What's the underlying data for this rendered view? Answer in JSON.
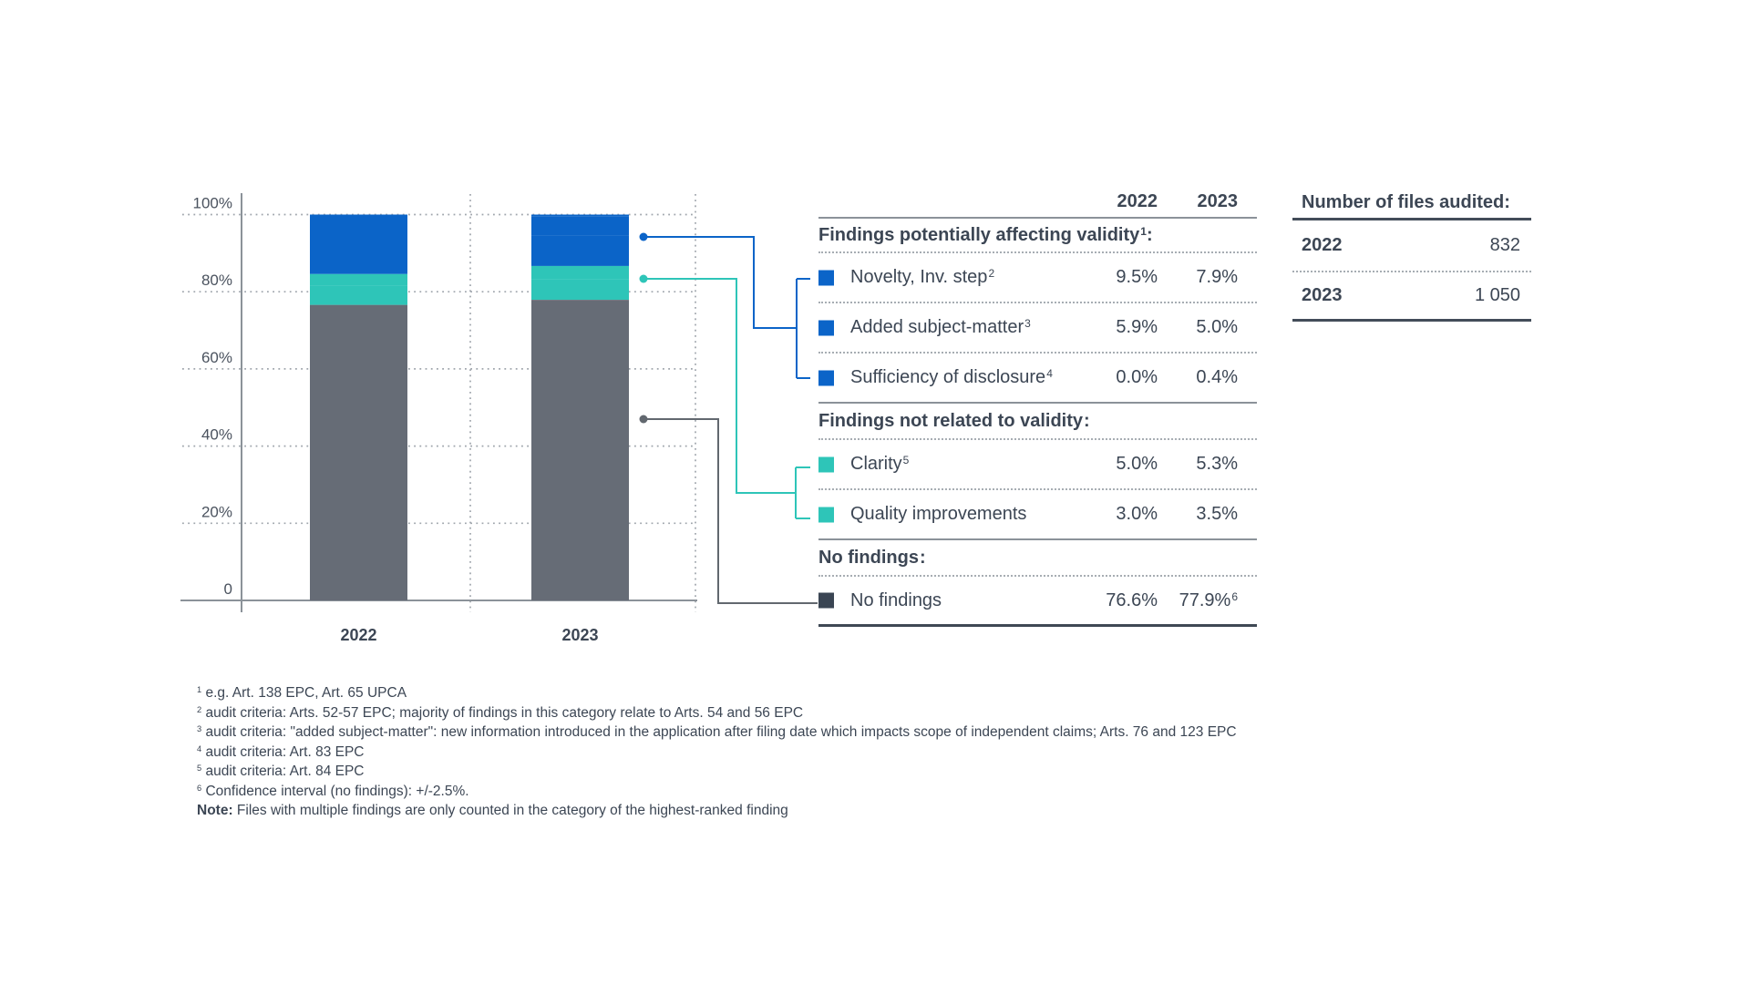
{
  "colors": {
    "blue": "#0B64C8",
    "teal": "#2EC5B8",
    "gray": "#666C76",
    "navy": "#3A4553",
    "text": "#3C4654",
    "axis_label": "#4A525E",
    "grid_dot": "#9FA5AC",
    "axis_line": "#8B9299",
    "connector_gray": "#62686F",
    "line_gray": "#8B9299",
    "line_dark": "#3F4854"
  },
  "chart_data": {
    "type": "bar",
    "stacked": true,
    "categories": [
      "2022",
      "2023"
    ],
    "series": [
      {
        "name": "No findings",
        "color": "gray",
        "values": [
          76.6,
          77.9
        ]
      },
      {
        "name": "Clarity",
        "color": "teal",
        "values": [
          5.0,
          5.3
        ]
      },
      {
        "name": "Quality improvements",
        "color": "teal",
        "values": [
          3.0,
          3.5
        ]
      },
      {
        "name": "Novelty, Inv. step",
        "color": "blue",
        "values": [
          9.5,
          7.9
        ]
      },
      {
        "name": "Added subject-matter",
        "color": "blue",
        "values": [
          5.9,
          5.0
        ]
      },
      {
        "name": "Sufficiency of disclosure",
        "color": "blue",
        "values": [
          0.0,
          0.4
        ]
      }
    ],
    "ylim": [
      0,
      100
    ],
    "yticks": [
      {
        "v": 0,
        "label": "0"
      },
      {
        "v": 20,
        "label": "20%"
      },
      {
        "v": 40,
        "label": "40%"
      },
      {
        "v": 60,
        "label": "60%"
      },
      {
        "v": 80,
        "label": "80%"
      },
      {
        "v": 100,
        "label": "100%"
      }
    ],
    "grid": "dotted",
    "title": "",
    "xlabel": "",
    "ylabel": ""
  },
  "legend_table": {
    "year_headers": [
      "2022",
      "2023"
    ],
    "sections": [
      {
        "title": "Findings potentially affecting validity",
        "title_sup": "1",
        "title_suffix": ":",
        "rows": [
          {
            "label": "Novelty, Inv. step",
            "sup": "2",
            "marker": "blue",
            "v2022": "9.5%",
            "v2023": "7.9%",
            "v2023_sup": ""
          },
          {
            "label": "Added subject-matter",
            "sup": "3",
            "marker": "blue",
            "v2022": "5.9%",
            "v2023": "5.0%",
            "v2023_sup": ""
          },
          {
            "label": "Sufficiency of disclosure",
            "sup": "4",
            "marker": "blue",
            "v2022": "0.0%",
            "v2023": "0.4%",
            "v2023_sup": ""
          }
        ]
      },
      {
        "title": "Findings not related to validity",
        "title_sup": "",
        "title_suffix": ":",
        "rows": [
          {
            "label": "Clarity",
            "sup": "5",
            "marker": "teal",
            "v2022": "5.0%",
            "v2023": "5.3%",
            "v2023_sup": ""
          },
          {
            "label": "Quality improvements",
            "sup": "",
            "marker": "teal",
            "v2022": "3.0%",
            "v2023": "3.5%",
            "v2023_sup": ""
          }
        ]
      },
      {
        "title": "No findings",
        "title_sup": "",
        "title_suffix": ":",
        "rows": [
          {
            "label": "No findings",
            "sup": "",
            "marker": "navy",
            "v2022": "76.6%",
            "v2023": "77.9%",
            "v2023_sup": "6"
          }
        ]
      }
    ]
  },
  "files_table": {
    "title": "Number of files audited:",
    "rows": [
      {
        "year": "2022",
        "value": "832"
      },
      {
        "year": "2023",
        "value": "1 050"
      }
    ]
  },
  "footnotes": [
    {
      "sup": "1",
      "bold": "",
      "text": "e.g. Art. 138 EPC, Art. 65 UPCA"
    },
    {
      "sup": "2",
      "bold": "",
      "text": "audit criteria: Arts. 52-57 EPC; majority of findings in this category relate to Arts. 54 and 56 EPC"
    },
    {
      "sup": "3",
      "bold": "",
      "text": "audit criteria: \"added subject-matter\": new information introduced in the application after filing date which impacts scope of independent claims; Arts. 76 and 123 EPC"
    },
    {
      "sup": "4",
      "bold": "",
      "text": "audit criteria: Art. 83 EPC"
    },
    {
      "sup": "5",
      "bold": "",
      "text": "audit criteria: Art. 84 EPC"
    },
    {
      "sup": "6",
      "bold": "",
      "text": "Confidence interval (no findings): +/-2.5%."
    },
    {
      "sup": "",
      "bold": "Note:",
      "text": "Files with multiple findings are only counted in the category of the highest-ranked finding"
    }
  ]
}
